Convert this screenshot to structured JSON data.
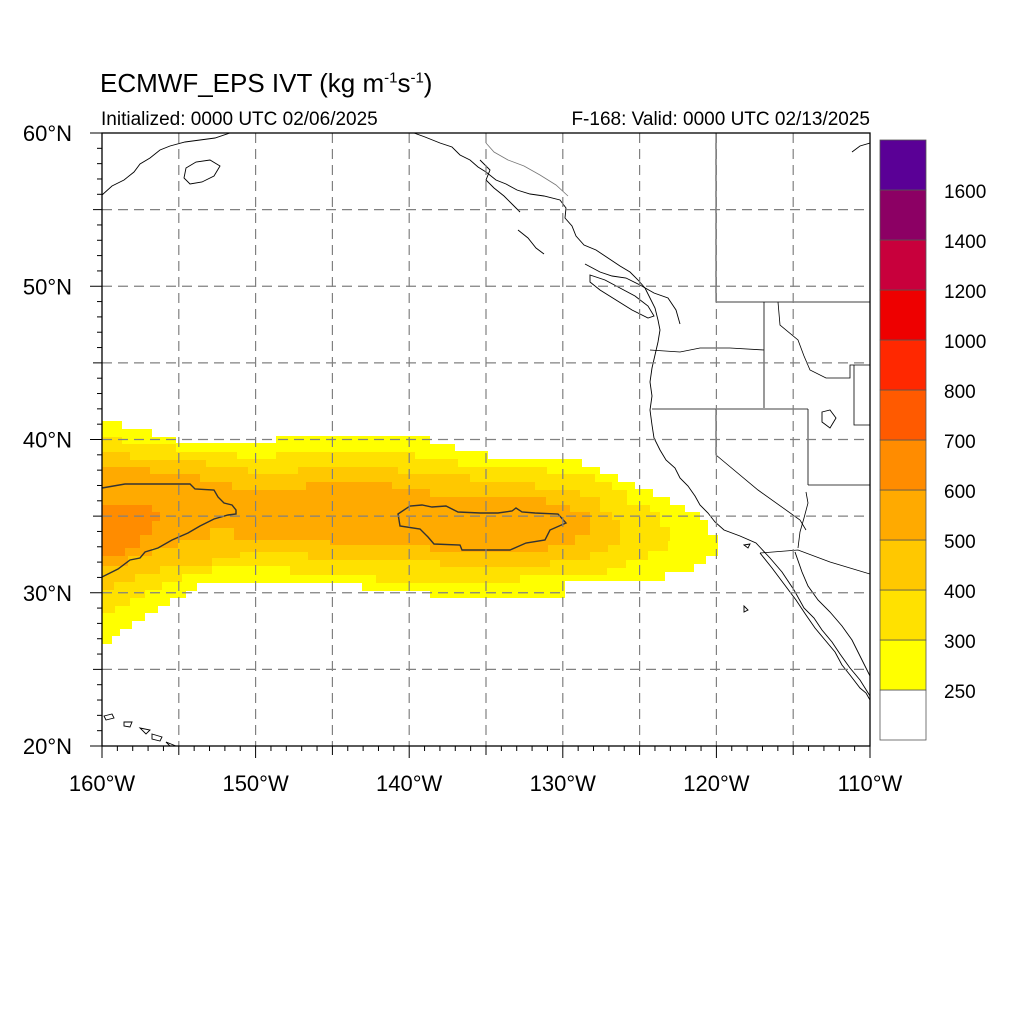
{
  "title": {
    "main_prefix": "ECMWF_EPS IVT (kg m",
    "exp1": "-1",
    "mid": "s",
    "exp2": "-1",
    "suffix": ")",
    "init_label": "Initialized: 0000 UTC 02/06/2025",
    "valid_label": "F-168: Valid: 0000 UTC 02/13/2025"
  },
  "axes": {
    "x_ticks": [
      {
        "value": -160,
        "label": "160°W"
      },
      {
        "value": -150,
        "label": "150°W"
      },
      {
        "value": -140,
        "label": "140°W"
      },
      {
        "value": -130,
        "label": "130°W"
      },
      {
        "value": -120,
        "label": "120°W"
      },
      {
        "value": -110,
        "label": "110°W"
      }
    ],
    "y_ticks": [
      {
        "value": 60,
        "label": "60°N"
      },
      {
        "value": 50,
        "label": "50°N"
      },
      {
        "value": 40,
        "label": "40°N"
      },
      {
        "value": 30,
        "label": "30°N"
      },
      {
        "value": 20,
        "label": "20°N"
      }
    ],
    "lon_range": [
      -160,
      -110
    ],
    "lat_range": [
      20,
      60
    ],
    "gridlines": "dashed, every 5 degrees"
  },
  "colorbar": {
    "labels": [
      "250",
      "300",
      "400",
      "500",
      "600",
      "700",
      "800",
      "1000",
      "1200",
      "1400",
      "1600"
    ],
    "colors": [
      "#ffffff",
      "#ffff00",
      "#ffe100",
      "#ffc800",
      "#ffaa00",
      "#ff8c00",
      "#ff5a00",
      "#ff2800",
      "#ee0000",
      "#c8003c",
      "#8c0064",
      "#5a0096"
    ]
  },
  "fields": {
    "description_levels": "IVT shading bands in kg m-1 s-1",
    "contour_level": 600
  }
}
